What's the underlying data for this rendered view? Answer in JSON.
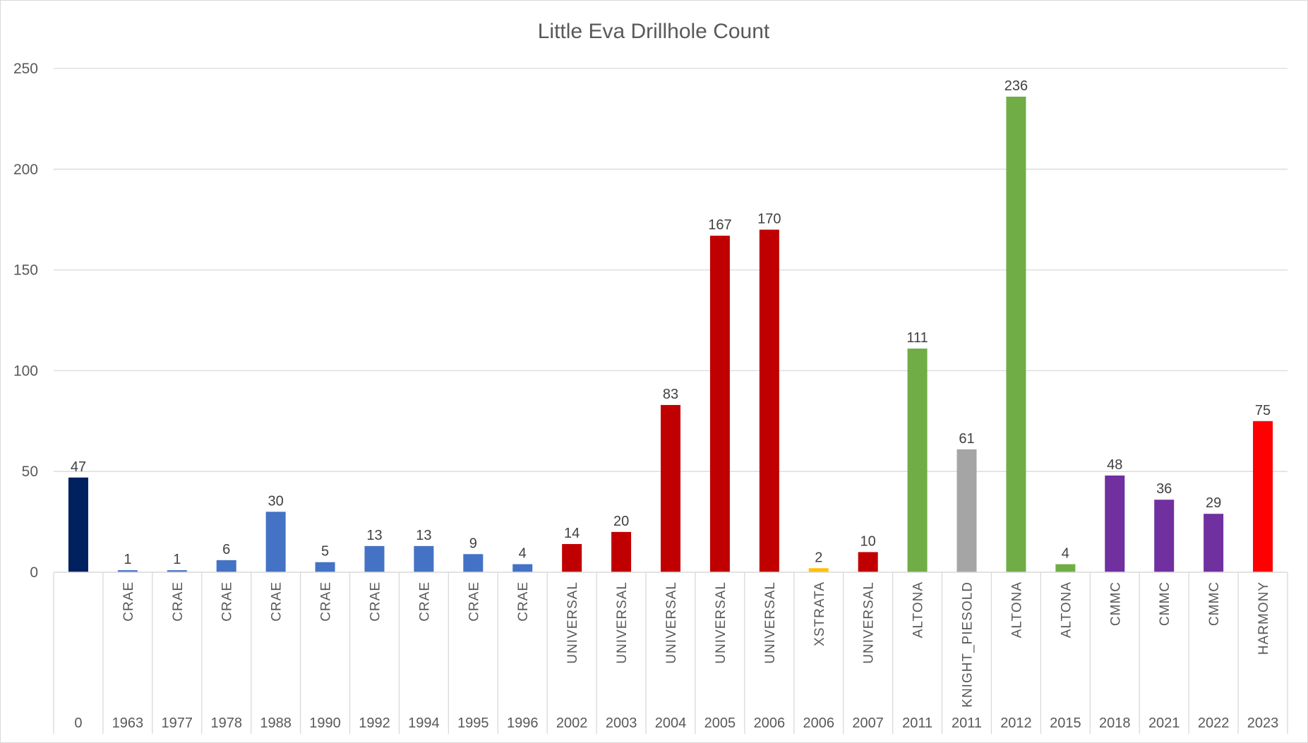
{
  "chart_data": {
    "type": "bar",
    "title": "Little Eva Drillhole Count",
    "xlabel": "",
    "ylabel": "",
    "ylim": [
      0,
      250
    ],
    "yticks": [
      0,
      50,
      100,
      150,
      200,
      250
    ],
    "grid": true,
    "legend": "none",
    "categories": [
      {
        "year": "0",
        "company": ""
      },
      {
        "year": "1963",
        "company": "CRAE"
      },
      {
        "year": "1977",
        "company": "CRAE"
      },
      {
        "year": "1978",
        "company": "CRAE"
      },
      {
        "year": "1988",
        "company": "CRAE"
      },
      {
        "year": "1990",
        "company": "CRAE"
      },
      {
        "year": "1992",
        "company": "CRAE"
      },
      {
        "year": "1994",
        "company": "CRAE"
      },
      {
        "year": "1995",
        "company": "CRAE"
      },
      {
        "year": "1996",
        "company": "CRAE"
      },
      {
        "year": "2002",
        "company": "UNIVERSAL"
      },
      {
        "year": "2003",
        "company": "UNIVERSAL"
      },
      {
        "year": "2004",
        "company": "UNIVERSAL"
      },
      {
        "year": "2005",
        "company": "UNIVERSAL"
      },
      {
        "year": "2006",
        "company": "UNIVERSAL"
      },
      {
        "year": "2006",
        "company": "XSTRATA"
      },
      {
        "year": "2007",
        "company": "UNIVERSAL"
      },
      {
        "year": "2011",
        "company": "ALTONA"
      },
      {
        "year": "2011",
        "company": "KNIGHT_PIESOLD"
      },
      {
        "year": "2012",
        "company": "ALTONA"
      },
      {
        "year": "2015",
        "company": "ALTONA"
      },
      {
        "year": "2018",
        "company": "CMMC"
      },
      {
        "year": "2021",
        "company": "CMMC"
      },
      {
        "year": "2022",
        "company": "CMMC"
      },
      {
        "year": "2023",
        "company": "HARMONY"
      }
    ],
    "values": [
      47,
      1,
      1,
      6,
      30,
      5,
      13,
      13,
      9,
      4,
      14,
      20,
      83,
      167,
      170,
      2,
      10,
      111,
      61,
      236,
      4,
      48,
      36,
      29,
      75
    ],
    "bar_colors": [
      "#002060",
      "#4472C4",
      "#4472C4",
      "#4472C4",
      "#4472C4",
      "#4472C4",
      "#4472C4",
      "#4472C4",
      "#4472C4",
      "#4472C4",
      "#C00000",
      "#C00000",
      "#C00000",
      "#C00000",
      "#C00000",
      "#FFC000",
      "#C00000",
      "#70AD47",
      "#A5A5A5",
      "#70AD47",
      "#70AD47",
      "#7030A0",
      "#7030A0",
      "#7030A0",
      "#FF0000"
    ]
  }
}
